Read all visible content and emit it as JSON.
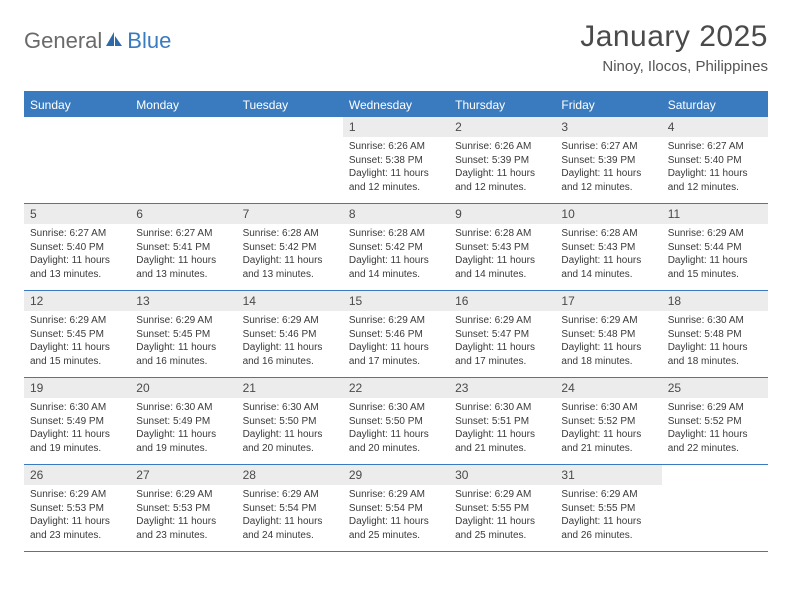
{
  "logo": {
    "text1": "General",
    "text2": "Blue"
  },
  "title": "January 2025",
  "location": "Ninoy, Ilocos, Philippines",
  "colors": {
    "header_bg": "#3a7bbf",
    "header_text": "#ffffff",
    "daynum_bg": "#ececec",
    "border": "#3a7bbf",
    "body_bg": "#ffffff",
    "text": "#333333",
    "logo_gray": "#6a6a6a",
    "logo_blue": "#3a7bbf"
  },
  "daysOfWeek": [
    "Sunday",
    "Monday",
    "Tuesday",
    "Wednesday",
    "Thursday",
    "Friday",
    "Saturday"
  ],
  "weeks": [
    [
      {
        "n": "",
        "sr": "",
        "ss": "",
        "dl1": "",
        "dl2": ""
      },
      {
        "n": "",
        "sr": "",
        "ss": "",
        "dl1": "",
        "dl2": ""
      },
      {
        "n": "",
        "sr": "",
        "ss": "",
        "dl1": "",
        "dl2": ""
      },
      {
        "n": "1",
        "sr": "Sunrise: 6:26 AM",
        "ss": "Sunset: 5:38 PM",
        "dl1": "Daylight: 11 hours",
        "dl2": "and 12 minutes."
      },
      {
        "n": "2",
        "sr": "Sunrise: 6:26 AM",
        "ss": "Sunset: 5:39 PM",
        "dl1": "Daylight: 11 hours",
        "dl2": "and 12 minutes."
      },
      {
        "n": "3",
        "sr": "Sunrise: 6:27 AM",
        "ss": "Sunset: 5:39 PM",
        "dl1": "Daylight: 11 hours",
        "dl2": "and 12 minutes."
      },
      {
        "n": "4",
        "sr": "Sunrise: 6:27 AM",
        "ss": "Sunset: 5:40 PM",
        "dl1": "Daylight: 11 hours",
        "dl2": "and 12 minutes."
      }
    ],
    [
      {
        "n": "5",
        "sr": "Sunrise: 6:27 AM",
        "ss": "Sunset: 5:40 PM",
        "dl1": "Daylight: 11 hours",
        "dl2": "and 13 minutes."
      },
      {
        "n": "6",
        "sr": "Sunrise: 6:27 AM",
        "ss": "Sunset: 5:41 PM",
        "dl1": "Daylight: 11 hours",
        "dl2": "and 13 minutes."
      },
      {
        "n": "7",
        "sr": "Sunrise: 6:28 AM",
        "ss": "Sunset: 5:42 PM",
        "dl1": "Daylight: 11 hours",
        "dl2": "and 13 minutes."
      },
      {
        "n": "8",
        "sr": "Sunrise: 6:28 AM",
        "ss": "Sunset: 5:42 PM",
        "dl1": "Daylight: 11 hours",
        "dl2": "and 14 minutes."
      },
      {
        "n": "9",
        "sr": "Sunrise: 6:28 AM",
        "ss": "Sunset: 5:43 PM",
        "dl1": "Daylight: 11 hours",
        "dl2": "and 14 minutes."
      },
      {
        "n": "10",
        "sr": "Sunrise: 6:28 AM",
        "ss": "Sunset: 5:43 PM",
        "dl1": "Daylight: 11 hours",
        "dl2": "and 14 minutes."
      },
      {
        "n": "11",
        "sr": "Sunrise: 6:29 AM",
        "ss": "Sunset: 5:44 PM",
        "dl1": "Daylight: 11 hours",
        "dl2": "and 15 minutes."
      }
    ],
    [
      {
        "n": "12",
        "sr": "Sunrise: 6:29 AM",
        "ss": "Sunset: 5:45 PM",
        "dl1": "Daylight: 11 hours",
        "dl2": "and 15 minutes."
      },
      {
        "n": "13",
        "sr": "Sunrise: 6:29 AM",
        "ss": "Sunset: 5:45 PM",
        "dl1": "Daylight: 11 hours",
        "dl2": "and 16 minutes."
      },
      {
        "n": "14",
        "sr": "Sunrise: 6:29 AM",
        "ss": "Sunset: 5:46 PM",
        "dl1": "Daylight: 11 hours",
        "dl2": "and 16 minutes."
      },
      {
        "n": "15",
        "sr": "Sunrise: 6:29 AM",
        "ss": "Sunset: 5:46 PM",
        "dl1": "Daylight: 11 hours",
        "dl2": "and 17 minutes."
      },
      {
        "n": "16",
        "sr": "Sunrise: 6:29 AM",
        "ss": "Sunset: 5:47 PM",
        "dl1": "Daylight: 11 hours",
        "dl2": "and 17 minutes."
      },
      {
        "n": "17",
        "sr": "Sunrise: 6:29 AM",
        "ss": "Sunset: 5:48 PM",
        "dl1": "Daylight: 11 hours",
        "dl2": "and 18 minutes."
      },
      {
        "n": "18",
        "sr": "Sunrise: 6:30 AM",
        "ss": "Sunset: 5:48 PM",
        "dl1": "Daylight: 11 hours",
        "dl2": "and 18 minutes."
      }
    ],
    [
      {
        "n": "19",
        "sr": "Sunrise: 6:30 AM",
        "ss": "Sunset: 5:49 PM",
        "dl1": "Daylight: 11 hours",
        "dl2": "and 19 minutes."
      },
      {
        "n": "20",
        "sr": "Sunrise: 6:30 AM",
        "ss": "Sunset: 5:49 PM",
        "dl1": "Daylight: 11 hours",
        "dl2": "and 19 minutes."
      },
      {
        "n": "21",
        "sr": "Sunrise: 6:30 AM",
        "ss": "Sunset: 5:50 PM",
        "dl1": "Daylight: 11 hours",
        "dl2": "and 20 minutes."
      },
      {
        "n": "22",
        "sr": "Sunrise: 6:30 AM",
        "ss": "Sunset: 5:50 PM",
        "dl1": "Daylight: 11 hours",
        "dl2": "and 20 minutes."
      },
      {
        "n": "23",
        "sr": "Sunrise: 6:30 AM",
        "ss": "Sunset: 5:51 PM",
        "dl1": "Daylight: 11 hours",
        "dl2": "and 21 minutes."
      },
      {
        "n": "24",
        "sr": "Sunrise: 6:30 AM",
        "ss": "Sunset: 5:52 PM",
        "dl1": "Daylight: 11 hours",
        "dl2": "and 21 minutes."
      },
      {
        "n": "25",
        "sr": "Sunrise: 6:29 AM",
        "ss": "Sunset: 5:52 PM",
        "dl1": "Daylight: 11 hours",
        "dl2": "and 22 minutes."
      }
    ],
    [
      {
        "n": "26",
        "sr": "Sunrise: 6:29 AM",
        "ss": "Sunset: 5:53 PM",
        "dl1": "Daylight: 11 hours",
        "dl2": "and 23 minutes."
      },
      {
        "n": "27",
        "sr": "Sunrise: 6:29 AM",
        "ss": "Sunset: 5:53 PM",
        "dl1": "Daylight: 11 hours",
        "dl2": "and 23 minutes."
      },
      {
        "n": "28",
        "sr": "Sunrise: 6:29 AM",
        "ss": "Sunset: 5:54 PM",
        "dl1": "Daylight: 11 hours",
        "dl2": "and 24 minutes."
      },
      {
        "n": "29",
        "sr": "Sunrise: 6:29 AM",
        "ss": "Sunset: 5:54 PM",
        "dl1": "Daylight: 11 hours",
        "dl2": "and 25 minutes."
      },
      {
        "n": "30",
        "sr": "Sunrise: 6:29 AM",
        "ss": "Sunset: 5:55 PM",
        "dl1": "Daylight: 11 hours",
        "dl2": "and 25 minutes."
      },
      {
        "n": "31",
        "sr": "Sunrise: 6:29 AM",
        "ss": "Sunset: 5:55 PM",
        "dl1": "Daylight: 11 hours",
        "dl2": "and 26 minutes."
      },
      {
        "n": "",
        "sr": "",
        "ss": "",
        "dl1": "",
        "dl2": ""
      }
    ]
  ]
}
